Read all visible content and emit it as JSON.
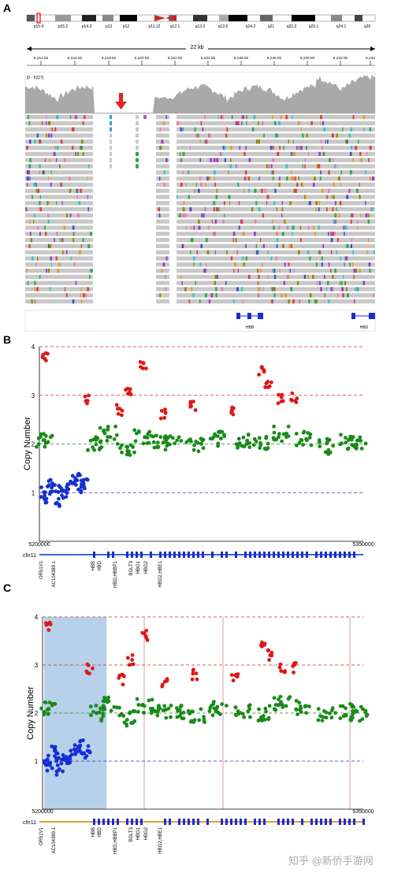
{
  "panels": {
    "a": {
      "letter": "A"
    },
    "b": {
      "letter": "B"
    },
    "c": {
      "letter": "C"
    }
  },
  "igv": {
    "cytobands": [
      "p15.4",
      "p15.2",
      "p14.3",
      "p13",
      "p12",
      "p11.12",
      "q12.1",
      "q13.2",
      "q13.5",
      "q14.2",
      "q21",
      "q22.2",
      "q23.1",
      "q24.1",
      "q25"
    ],
    "span_label": "22 kb",
    "ruler_ticks": [
      "5,214 kb",
      "5,216 kb",
      "5,218 kb",
      "5,220 kb",
      "5,222 kb",
      "5,224 kb",
      "5,226 kb",
      "5,228 kb",
      "5,230 kb",
      "5,232 kb",
      "5,234"
    ],
    "coverage_range": "[0 - 6227]",
    "genes": [
      "HBB",
      "HBD"
    ],
    "colors": {
      "deletion_arrow": "#e8231f",
      "read": "#c8c8c8",
      "gene": "#1a2ecf"
    }
  },
  "chart_data": [
    {
      "type": "scatter",
      "panel": "B",
      "xlabel": "",
      "ylabel": "Copy Number",
      "xlim": [
        5200000,
        5350000
      ],
      "ylim": [
        0,
        4
      ],
      "x_tick_labels": [
        "5200000",
        "5350000"
      ],
      "y_tick_labels": [
        "1",
        "2",
        "3",
        "4"
      ],
      "reference_lines": [
        1,
        2,
        3,
        4
      ],
      "chromosome": "chr11",
      "genes": [
        "OR51V1",
        "AC104389.1",
        "HBB",
        "HBD",
        "HBD,HBBP1",
        "BGLT3",
        "HBG1",
        "HBG2",
        "HBG2,HBE1"
      ],
      "series": [
        {
          "color": "#1530d0",
          "x": [
            5202000,
            5203500,
            5205000,
            5206500,
            5208000,
            5210000,
            5212000,
            5214000,
            5216500,
            5218000,
            5219500,
            5221000
          ],
          "y": [
            1.0,
            0.9,
            1.2,
            1.1,
            0.8,
            1.05,
            1.0,
            1.15,
            1.25,
            1.35,
            1.1,
            1.2
          ]
        },
        {
          "color": "#1a8a1a",
          "x": [
            5202000,
            5225000,
            5232000,
            5240000,
            5248000,
            5256000,
            5262000,
            5272000,
            5282000,
            5294000,
            5303000,
            5312000,
            5322000,
            5333000,
            5343000,
            5348000
          ],
          "y": [
            2.1,
            2.0,
            2.2,
            1.9,
            2.15,
            2.05,
            2.0,
            1.95,
            2.1,
            2.05,
            2.0,
            2.2,
            2.1,
            1.95,
            2.05,
            2.0
          ]
        },
        {
          "color": "#e01616",
          "x": [
            5203000,
            5222000,
            5237000,
            5241000,
            5248000,
            5257000,
            5271000,
            5290000,
            5303000,
            5306000,
            5312000,
            5318000
          ],
          "y": [
            3.8,
            2.9,
            2.7,
            3.1,
            3.6,
            2.6,
            2.8,
            2.7,
            3.5,
            3.2,
            2.9,
            2.95
          ]
        }
      ]
    },
    {
      "type": "scatter",
      "panel": "C",
      "xlabel": "",
      "ylabel": "Copy Number",
      "xlim": [
        5200000,
        5350000
      ],
      "ylim": [
        0,
        4
      ],
      "x_tick_labels": [
        "5200000",
        "5350000"
      ],
      "y_tick_labels": [
        "1",
        "2",
        "3",
        "4"
      ],
      "reference_lines": [
        1,
        2,
        3,
        4
      ],
      "chromosome": "chr11",
      "genes": [
        "OR51V1",
        "AC104389.1",
        "HBB",
        "HBD",
        "HBD,HBBP1",
        "BGLT3",
        "HBG1",
        "HBG2",
        "HBG2,HBE1"
      ],
      "series": [
        {
          "color": "#1530d0",
          "x": [
            5202000,
            5203500,
            5205000,
            5206500,
            5208000,
            5210000,
            5212000,
            5214000,
            5216500,
            5218000,
            5219500,
            5221000
          ],
          "y": [
            1.0,
            0.9,
            1.2,
            1.1,
            0.8,
            1.05,
            1.0,
            1.15,
            1.25,
            1.35,
            1.1,
            1.2
          ]
        },
        {
          "color": "#1a8a1a",
          "x": [
            5202000,
            5225000,
            5232000,
            5240000,
            5248000,
            5256000,
            5262000,
            5272000,
            5282000,
            5294000,
            5303000,
            5312000,
            5322000,
            5333000,
            5343000,
            5348000
          ],
          "y": [
            2.1,
            2.0,
            2.2,
            1.9,
            2.15,
            2.05,
            2.0,
            1.95,
            2.1,
            2.05,
            2.0,
            2.2,
            2.1,
            1.95,
            2.05,
            2.0
          ]
        },
        {
          "color": "#e01616",
          "x": [
            5203000,
            5222000,
            5237000,
            5241000,
            5248000,
            5257000,
            5271000,
            5290000,
            5303000,
            5306000,
            5312000,
            5318000
          ],
          "y": [
            3.8,
            2.9,
            2.7,
            3.1,
            3.6,
            2.6,
            2.8,
            2.7,
            3.5,
            3.2,
            2.9,
            2.95
          ]
        }
      ],
      "highlight_region": [
        5200000,
        5230000
      ]
    }
  ],
  "watermark": {
    "text": "知乎 @新侨手游网"
  }
}
